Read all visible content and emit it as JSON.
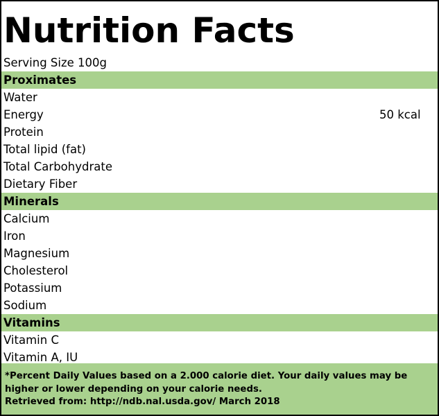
{
  "title": "Nutrition Facts",
  "serving_size": "Serving Size 100g",
  "sections": {
    "proximates": {
      "name": "Proximates",
      "items": [
        {
          "label": "Water",
          "value": ""
        },
        {
          "label": "Energy",
          "value": "50 kcal"
        },
        {
          "label": "Protein",
          "value": ""
        },
        {
          "label": "Total lipid (fat)",
          "value": ""
        },
        {
          "label": "Total Carbohydrate",
          "value": ""
        },
        {
          "label": "Dietary Fiber",
          "value": ""
        }
      ]
    },
    "minerals": {
      "name": "Minerals",
      "items": [
        {
          "label": "Calcium",
          "value": ""
        },
        {
          "label": "Iron",
          "value": ""
        },
        {
          "label": "Magnesium",
          "value": ""
        },
        {
          "label": "Cholesterol",
          "value": ""
        },
        {
          "label": "Potassium",
          "value": ""
        },
        {
          "label": "Sodium",
          "value": ""
        }
      ]
    },
    "vitamins": {
      "name": "Vitamins",
      "items": [
        {
          "label": "Vitamin C",
          "value": ""
        },
        {
          "label": "Vitamin A, IU",
          "value": ""
        }
      ]
    }
  },
  "footer": {
    "disclaimer": "*Percent Daily Values based on a 2.000 calorie diet. Your daily values may be higher or lower depending on your calorie needs.",
    "source": "Retrieved from: http://ndb.nal.usda.gov/ March 2018"
  },
  "colors": {
    "section_band": "#a9d18e",
    "border": "#000000"
  }
}
